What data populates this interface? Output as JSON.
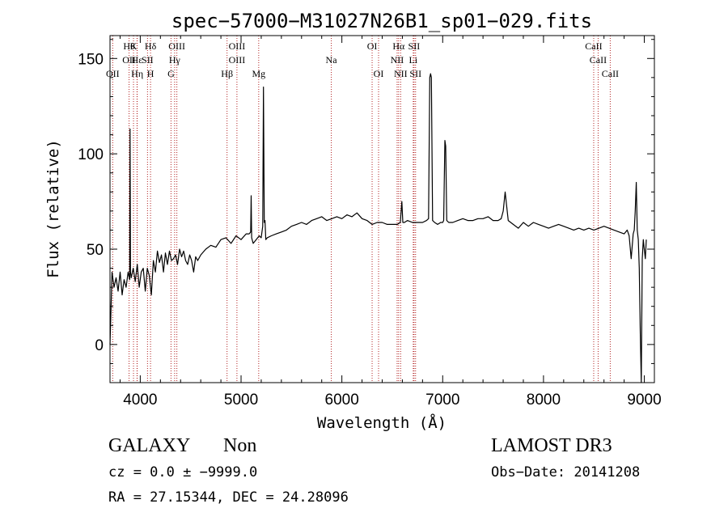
{
  "chart_data": {
    "type": "line",
    "title": "spec−57000−M31027N26B1_sp01−029.fits",
    "xlabel": "Wavelength (Å)",
    "ylabel": "Flux (relative)",
    "xlim": [
      3700,
      9100
    ],
    "ylim": [
      -20,
      162
    ],
    "x_ticks": [
      4000,
      5000,
      6000,
      7000,
      8000,
      9000
    ],
    "y_ticks": [
      0,
      50,
      100,
      150
    ],
    "grid": false,
    "series": [
      {
        "color": "#000000",
        "x": [
          3700,
          3720,
          3740,
          3760,
          3780,
          3800,
          3820,
          3840,
          3860,
          3880,
          3895,
          3899,
          3903,
          3910,
          3930,
          3950,
          3970,
          3990,
          4010,
          4030,
          4050,
          4070,
          4090,
          4110,
          4130,
          4150,
          4170,
          4190,
          4210,
          4230,
          4250,
          4270,
          4290,
          4310,
          4330,
          4350,
          4370,
          4390,
          4410,
          4430,
          4450,
          4470,
          4490,
          4510,
          4530,
          4550,
          4570,
          4600,
          4650,
          4700,
          4750,
          4800,
          4850,
          4900,
          4950,
          5000,
          5050,
          5080,
          5095,
          5100,
          5105,
          5120,
          5150,
          5180,
          5200,
          5215,
          5222,
          5230,
          5237,
          5245,
          5260,
          5300,
          5350,
          5400,
          5450,
          5500,
          5550,
          5600,
          5650,
          5700,
          5750,
          5800,
          5850,
          5900,
          5950,
          6000,
          6050,
          6100,
          6150,
          6200,
          6250,
          6300,
          6350,
          6400,
          6450,
          6500,
          6550,
          6580,
          6595,
          6605,
          6620,
          6650,
          6700,
          6750,
          6800,
          6840,
          6860,
          6872,
          6880,
          6888,
          6900,
          6920,
          6950,
          6980,
          7000,
          7010,
          7022,
          7030,
          7040,
          7060,
          7100,
          7150,
          7200,
          7250,
          7300,
          7350,
          7400,
          7450,
          7500,
          7550,
          7580,
          7600,
          7620,
          7650,
          7700,
          7750,
          7800,
          7850,
          7900,
          7950,
          8000,
          8050,
          8100,
          8150,
          8200,
          8250,
          8300,
          8350,
          8400,
          8450,
          8500,
          8550,
          8600,
          8650,
          8700,
          8750,
          8800,
          8830,
          8850,
          8870,
          8890,
          8900,
          8910,
          8920,
          8930,
          8940,
          8950,
          8960,
          8970,
          8980,
          8990,
          9000,
          9010,
          9020
        ],
        "y": [
          0,
          38,
          30,
          35,
          28,
          38,
          26,
          34,
          30,
          38,
          34,
          113,
          38,
          35,
          40,
          33,
          42,
          30,
          38,
          40,
          28,
          40,
          36,
          26,
          44,
          38,
          49,
          43,
          47,
          38,
          48,
          42,
          49,
          44,
          45,
          47,
          42,
          50,
          46,
          49,
          44,
          42,
          47,
          44,
          38,
          46,
          44,
          47,
          50,
          52,
          51,
          55,
          56,
          53,
          57,
          55,
          58,
          58,
          59,
          78,
          56,
          53,
          55,
          57,
          56,
          62,
          135,
          64,
          65,
          55,
          56,
          57,
          58,
          59,
          60,
          62,
          63,
          64,
          63,
          65,
          66,
          67,
          65,
          66,
          67,
          66,
          68,
          67,
          69,
          66,
          65,
          63,
          64,
          64,
          63,
          63,
          63,
          64,
          75,
          64,
          64,
          65,
          64,
          64,
          64,
          65,
          66,
          140,
          142,
          140,
          65,
          64,
          63,
          64,
          64,
          65,
          107,
          104,
          65,
          64,
          64,
          65,
          66,
          65,
          65,
          66,
          66,
          67,
          65,
          65,
          66,
          70,
          80,
          65,
          63,
          61,
          64,
          62,
          64,
          63,
          62,
          61,
          62,
          63,
          62,
          61,
          60,
          61,
          60,
          61,
          60,
          61,
          62,
          61,
          60,
          59,
          58,
          60,
          57,
          45,
          58,
          60,
          70,
          85,
          60,
          55,
          40,
          5,
          -20,
          45,
          55,
          50,
          45,
          55
        ]
      }
    ],
    "line_markers": [
      {
        "wl": 3727,
        "label": "OII",
        "row": 3
      },
      {
        "wl": 3889,
        "label": "OII",
        "row": 2
      },
      {
        "wl": 3889,
        "label": "Hθ",
        "row": 1
      },
      {
        "wl": 3933,
        "label": "K",
        "row": 1
      },
      {
        "wl": 3968,
        "label": "Hε",
        "row": 2
      },
      {
        "wl": 3970,
        "label": "Hη",
        "row": 3
      },
      {
        "wl": 4102,
        "label": "Hδ",
        "row": 1
      },
      {
        "wl": 4072,
        "label": "SII",
        "row": 2
      },
      {
        "wl": 4102,
        "label": "H",
        "row": 3
      },
      {
        "wl": 4341,
        "label": "Hγ",
        "row": 2
      },
      {
        "wl": 4305,
        "label": "G",
        "row": 3
      },
      {
        "wl": 4363,
        "label": "OIII",
        "row": 1
      },
      {
        "wl": 4861,
        "label": "Hβ",
        "row": 3
      },
      {
        "wl": 4959,
        "label": "OIII",
        "row": 1
      },
      {
        "wl": 4959,
        "label": "OIII",
        "row": 2
      },
      {
        "wl": 5175,
        "label": "Mg",
        "row": 3
      },
      {
        "wl": 5895,
        "label": "Na",
        "row": 2
      },
      {
        "wl": 6300,
        "label": "OI",
        "row": 1
      },
      {
        "wl": 6364,
        "label": "OI",
        "row": 3
      },
      {
        "wl": 6563,
        "label": "Hα",
        "row": 1
      },
      {
        "wl": 6548,
        "label": "NII",
        "row": 2
      },
      {
        "wl": 6583,
        "label": "NII",
        "row": 3
      },
      {
        "wl": 6716,
        "label": "SII",
        "row": 1
      },
      {
        "wl": 6708,
        "label": "Li",
        "row": 2
      },
      {
        "wl": 6731,
        "label": "SII",
        "row": 3
      },
      {
        "wl": 8498,
        "label": "CaII",
        "row": 1
      },
      {
        "wl": 8542,
        "label": "CaII",
        "row": 2
      },
      {
        "wl": 8662,
        "label": "CaII",
        "row": 3
      }
    ]
  },
  "info": {
    "object_class": "GALAXY",
    "subclass": "Non",
    "redshift": "cz = 0.0 ± −9999.0",
    "coords": "RA =  27.15344, DEC =  24.28096",
    "survey": "LAMOST DR3",
    "obs_date": "Obs−Date: 20141208"
  }
}
